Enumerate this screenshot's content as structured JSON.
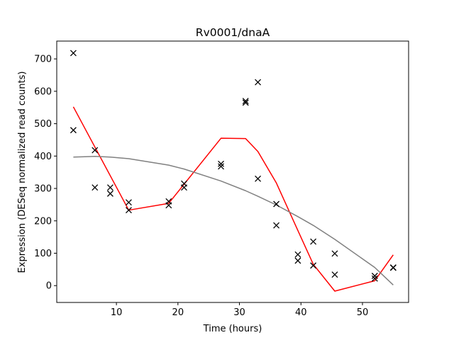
{
  "chart_data": {
    "type": "scatter",
    "title": "Rv0001/dnaA",
    "xlabel": "Time (hours)",
    "ylabel": "Expression (DESeq normalized read counts)",
    "xlim": [
      0.3,
      57.5
    ],
    "ylim": [
      -52,
      755
    ],
    "xticks": [
      10,
      20,
      30,
      40,
      50
    ],
    "yticks": [
      0,
      100,
      200,
      300,
      400,
      500,
      600,
      700
    ],
    "grid": false,
    "legend": "none",
    "series": [
      {
        "kind": "scatter",
        "marker": "x",
        "color": "#000000",
        "points": [
          [
            3,
            718
          ],
          [
            3,
            480
          ],
          [
            6.5,
            418
          ],
          [
            6.5,
            303
          ],
          [
            9,
            303
          ],
          [
            9,
            284
          ],
          [
            12,
            257
          ],
          [
            12,
            233
          ],
          [
            18.5,
            260
          ],
          [
            18.5,
            248
          ],
          [
            21,
            315
          ],
          [
            21,
            303
          ],
          [
            27,
            376
          ],
          [
            27,
            368
          ],
          [
            31,
            570
          ],
          [
            31,
            565
          ],
          [
            33,
            628
          ],
          [
            33,
            330
          ],
          [
            36,
            252
          ],
          [
            36,
            186
          ],
          [
            39.5,
            96
          ],
          [
            39.5,
            77
          ],
          [
            42,
            136
          ],
          [
            42,
            62
          ],
          [
            45.5,
            99
          ],
          [
            45.5,
            34
          ],
          [
            52,
            30
          ],
          [
            52,
            22
          ],
          [
            55,
            56
          ],
          [
            55,
            55
          ]
        ]
      },
      {
        "kind": "line",
        "color": "#ff0000",
        "points": [
          [
            3,
            552
          ],
          [
            12,
            233
          ],
          [
            18.5,
            254
          ],
          [
            27,
            455
          ],
          [
            31,
            454
          ],
          [
            33,
            414
          ],
          [
            36,
            317
          ],
          [
            39.5,
            170
          ],
          [
            42,
            66
          ],
          [
            45.5,
            -17
          ],
          [
            52,
            15
          ],
          [
            55,
            95
          ]
        ]
      },
      {
        "kind": "line",
        "color": "#808080",
        "points": [
          [
            3,
            397
          ],
          [
            6.5,
            399
          ],
          [
            9,
            397
          ],
          [
            12,
            392
          ],
          [
            18.5,
            372
          ],
          [
            21,
            360
          ],
          [
            27,
            323
          ],
          [
            31,
            293
          ],
          [
            33,
            276
          ],
          [
            36,
            249
          ],
          [
            39.5,
            213
          ],
          [
            42,
            186
          ],
          [
            45.5,
            143
          ],
          [
            52,
            56
          ],
          [
            55,
            2
          ]
        ]
      }
    ]
  }
}
